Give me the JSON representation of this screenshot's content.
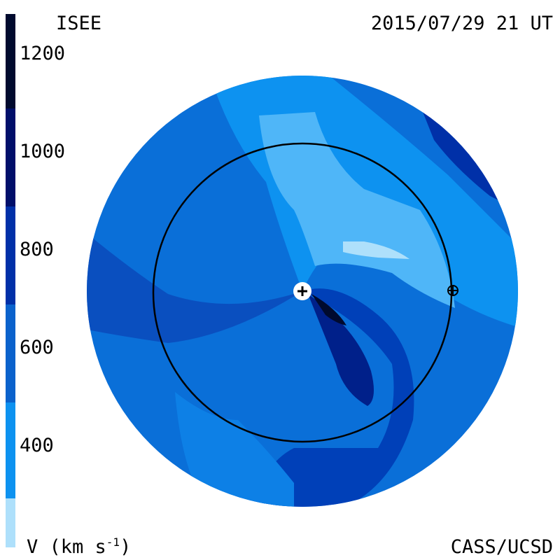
{
  "header": {
    "left": "ISEE",
    "right": "2015/07/29 21 UT"
  },
  "footer": {
    "right": "CASS/UCSD"
  },
  "colorbar": {
    "label": {
      "text": "V (km s",
      "exponent": "-1",
      "close": ")"
    },
    "ticks": [
      "1200",
      "1000",
      "800",
      "600",
      "400"
    ]
  }
}
